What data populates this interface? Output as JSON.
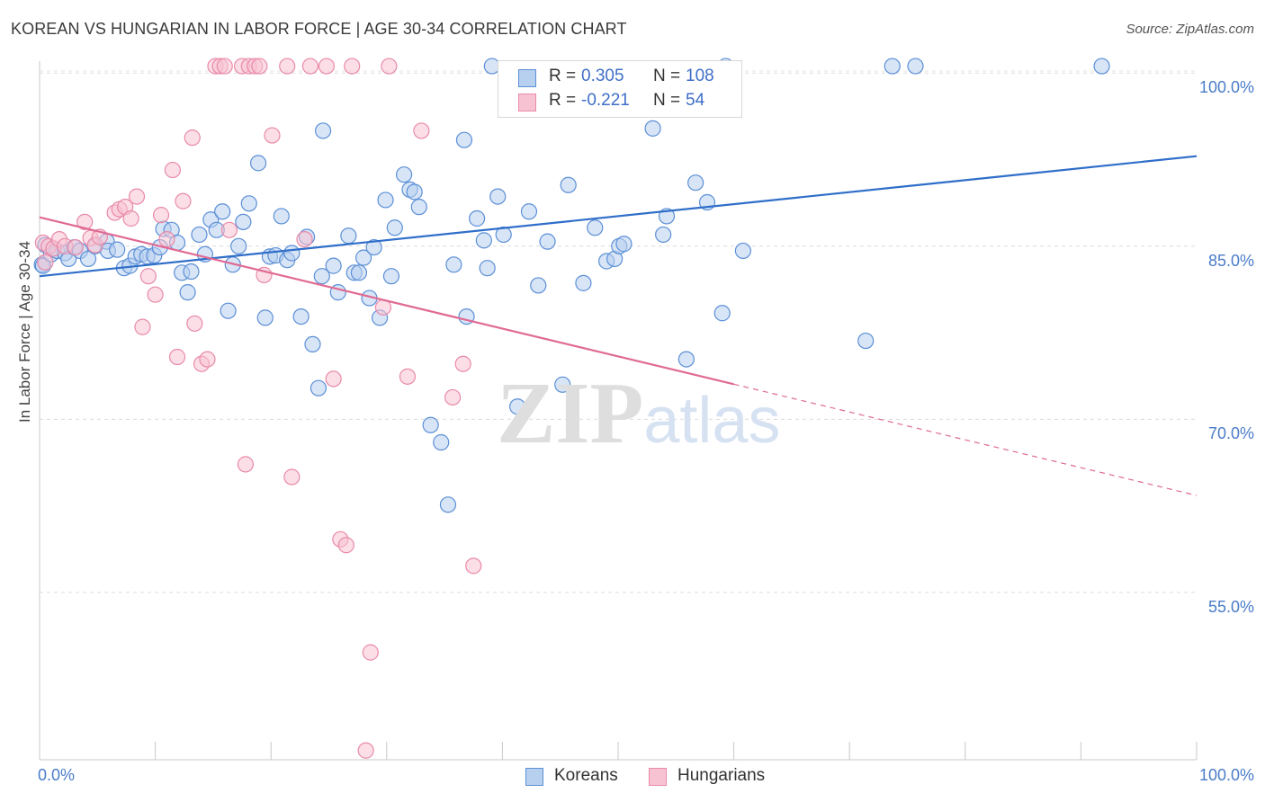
{
  "title": "KOREAN VS HUNGARIAN IN LABOR FORCE | AGE 30-34 CORRELATION CHART",
  "source": "Source: ZipAtlas.com",
  "watermark": {
    "zip": "ZIP",
    "atlas": "atlas"
  },
  "stats": [
    {
      "r_label": "R =",
      "r_value": "0.305",
      "n_label": "N =",
      "n_value": "108",
      "color": "#5b8fd6",
      "fill": "#b8d0f0"
    },
    {
      "r_label": "R =",
      "r_value": "-0.221",
      "n_label": "N =",
      "n_value": "54",
      "color": "#e98aaa",
      "fill": "#f7c3d2"
    }
  ],
  "chart_data": {
    "type": "scatter",
    "title": "KOREAN VS HUNGARIAN IN LABOR FORCE | AGE 30-34 CORRELATION CHART",
    "ylabel": "In Labor Force | Age 30-34",
    "xlabel": "",
    "xlim": [
      0,
      100
    ],
    "ylim": [
      40.5,
      101.5
    ],
    "x_tick_labels": [
      "0.0%",
      "100.0%"
    ],
    "y_ticks": [
      55,
      70,
      85,
      100
    ],
    "y_tick_labels": [
      "55.0%",
      "70.0%",
      "85.0%",
      "100.0%"
    ],
    "grid": "horizontal dashed",
    "legend": "bottom-center",
    "series": [
      {
        "name": "Koreans",
        "color": "#5b8fd6",
        "fill": "#b8d0f0",
        "trend": {
          "x": [
            0,
            100
          ],
          "y": [
            82.4,
            92.8
          ],
          "solid_until": 100
        },
        "points": [
          [
            0.2,
            83.4
          ],
          [
            0.3,
            83.3
          ],
          [
            0.5,
            85.1
          ],
          [
            1.0,
            84.3
          ],
          [
            1.5,
            84.6
          ],
          [
            2.2,
            84.4
          ],
          [
            2.5,
            83.9
          ],
          [
            3.0,
            84.9
          ],
          [
            3.5,
            84.6
          ],
          [
            4.2,
            83.9
          ],
          [
            4.8,
            85.0
          ],
          [
            5.8,
            85.4
          ],
          [
            5.9,
            84.6
          ],
          [
            6.7,
            84.7
          ],
          [
            7.3,
            83.1
          ],
          [
            7.8,
            83.3
          ],
          [
            8.3,
            84.1
          ],
          [
            8.8,
            84.3
          ],
          [
            9.3,
            84.1
          ],
          [
            9.9,
            84.2
          ],
          [
            10.4,
            84.9
          ],
          [
            10.7,
            86.5
          ],
          [
            11.4,
            86.4
          ],
          [
            11.9,
            85.3
          ],
          [
            12.3,
            82.7
          ],
          [
            12.8,
            81.0
          ],
          [
            13.1,
            82.8
          ],
          [
            13.8,
            86.0
          ],
          [
            14.3,
            84.3
          ],
          [
            14.8,
            87.3
          ],
          [
            15.3,
            86.4
          ],
          [
            15.8,
            88.0
          ],
          [
            16.3,
            79.4
          ],
          [
            16.7,
            83.4
          ],
          [
            17.2,
            85.0
          ],
          [
            17.6,
            87.1
          ],
          [
            18.1,
            88.7
          ],
          [
            18.9,
            92.2
          ],
          [
            19.5,
            78.8
          ],
          [
            19.9,
            84.1
          ],
          [
            20.4,
            84.2
          ],
          [
            20.9,
            87.6
          ],
          [
            21.4,
            83.8
          ],
          [
            21.8,
            84.4
          ],
          [
            22.6,
            78.9
          ],
          [
            23.1,
            85.8
          ],
          [
            23.6,
            76.5
          ],
          [
            24.1,
            72.7
          ],
          [
            24.4,
            82.4
          ],
          [
            24.5,
            95.0
          ],
          [
            25.4,
            83.3
          ],
          [
            25.8,
            81.0
          ],
          [
            26.7,
            85.9
          ],
          [
            27.2,
            82.7
          ],
          [
            27.6,
            82.7
          ],
          [
            28.0,
            84.0
          ],
          [
            28.5,
            80.5
          ],
          [
            28.9,
            84.9
          ],
          [
            29.4,
            78.8
          ],
          [
            29.9,
            89.0
          ],
          [
            30.4,
            82.4
          ],
          [
            30.7,
            86.6
          ],
          [
            31.5,
            91.2
          ],
          [
            32.0,
            89.9
          ],
          [
            32.4,
            89.7
          ],
          [
            32.8,
            88.4
          ],
          [
            33.8,
            69.5
          ],
          [
            34.7,
            68.0
          ],
          [
            35.3,
            62.6
          ],
          [
            35.8,
            83.4
          ],
          [
            36.7,
            94.2
          ],
          [
            36.9,
            78.9
          ],
          [
            37.8,
            87.4
          ],
          [
            38.4,
            85.5
          ],
          [
            38.7,
            83.1
          ],
          [
            39.1,
            100.6
          ],
          [
            39.6,
            89.3
          ],
          [
            40.1,
            86.0
          ],
          [
            41.3,
            71.1
          ],
          [
            42.3,
            88.0
          ],
          [
            43.1,
            81.6
          ],
          [
            43.9,
            85.4
          ],
          [
            45.2,
            73.0
          ],
          [
            45.7,
            90.3
          ],
          [
            47.0,
            81.8
          ],
          [
            48.0,
            86.6
          ],
          [
            49.0,
            83.7
          ],
          [
            49.7,
            83.9
          ],
          [
            50.1,
            85.0
          ],
          [
            50.5,
            85.2
          ],
          [
            51.7,
            98.0
          ],
          [
            53.0,
            95.2
          ],
          [
            53.9,
            86.0
          ],
          [
            54.2,
            87.6
          ],
          [
            55.9,
            75.2
          ],
          [
            56.7,
            90.5
          ],
          [
            57.7,
            88.8
          ],
          [
            59.0,
            79.2
          ],
          [
            59.3,
            100.6
          ],
          [
            60.8,
            84.6
          ],
          [
            71.4,
            76.8
          ],
          [
            73.7,
            100.6
          ],
          [
            75.7,
            100.6
          ],
          [
            91.8,
            100.6
          ]
        ]
      },
      {
        "name": "Hungarians",
        "color": "#e98aaa",
        "fill": "#f7c3d2",
        "trend": {
          "x": [
            0,
            100
          ],
          "y": [
            87.5,
            63.4
          ],
          "solid_until": 60
        },
        "points": [
          [
            0.3,
            85.3
          ],
          [
            0.5,
            83.6
          ],
          [
            0.8,
            85.0
          ],
          [
            1.2,
            84.8
          ],
          [
            1.7,
            85.6
          ],
          [
            2.2,
            85.0
          ],
          [
            3.1,
            84.9
          ],
          [
            3.9,
            87.1
          ],
          [
            4.4,
            85.7
          ],
          [
            4.8,
            85.1
          ],
          [
            5.2,
            85.8
          ],
          [
            6.5,
            87.9
          ],
          [
            6.9,
            88.2
          ],
          [
            7.4,
            88.4
          ],
          [
            7.9,
            87.4
          ],
          [
            8.4,
            89.3
          ],
          [
            8.9,
            78.0
          ],
          [
            9.4,
            82.4
          ],
          [
            10.0,
            80.8
          ],
          [
            10.5,
            87.7
          ],
          [
            11.0,
            85.6
          ],
          [
            11.5,
            91.6
          ],
          [
            11.9,
            75.4
          ],
          [
            12.4,
            88.9
          ],
          [
            13.2,
            94.4
          ],
          [
            13.4,
            78.3
          ],
          [
            14.0,
            74.8
          ],
          [
            14.5,
            75.2
          ],
          [
            15.2,
            100.6
          ],
          [
            15.6,
            100.6
          ],
          [
            16.0,
            100.6
          ],
          [
            16.4,
            86.4
          ],
          [
            17.5,
            100.6
          ],
          [
            17.8,
            66.1
          ],
          [
            18.1,
            100.6
          ],
          [
            18.6,
            100.6
          ],
          [
            19.0,
            100.6
          ],
          [
            19.4,
            82.5
          ],
          [
            20.1,
            94.6
          ],
          [
            21.4,
            100.6
          ],
          [
            21.8,
            65.0
          ],
          [
            22.9,
            85.6
          ],
          [
            23.4,
            100.6
          ],
          [
            24.8,
            100.6
          ],
          [
            25.4,
            73.5
          ],
          [
            26.0,
            59.6
          ],
          [
            26.5,
            59.1
          ],
          [
            27.0,
            100.6
          ],
          [
            28.2,
            41.3
          ],
          [
            28.6,
            49.8
          ],
          [
            29.7,
            79.7
          ],
          [
            30.2,
            100.6
          ],
          [
            31.8,
            73.7
          ],
          [
            33.0,
            95.0
          ],
          [
            35.7,
            71.9
          ],
          [
            36.6,
            74.8
          ],
          [
            37.5,
            57.3
          ]
        ]
      }
    ]
  }
}
